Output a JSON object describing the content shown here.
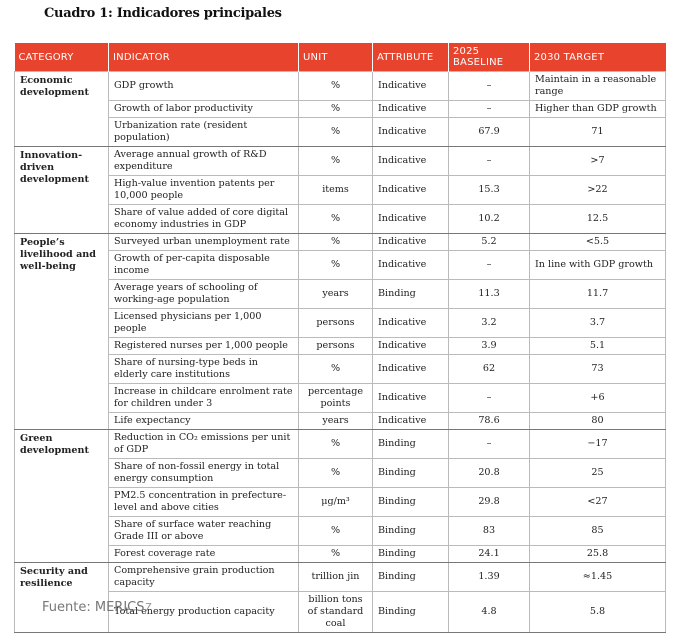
{
  "header": {
    "title": "Cuadro 1: Indicadores principales"
  },
  "table": {
    "columns": [
      "CATEGORY",
      "INDICATOR",
      "UNIT",
      "ATTRIBUTE",
      "2025 BASELINE",
      "2030 TARGET"
    ],
    "groups": [
      {
        "category": "Economic development",
        "rows": [
          {
            "indicator": "GDP growth",
            "unit": "%",
            "attribute": "Indicative",
            "baseline": "–",
            "target": "Maintain in a reasonable range"
          },
          {
            "indicator": "Growth of labor productivity",
            "unit": "%",
            "attribute": "Indicative",
            "baseline": "–",
            "target": "Higher than GDP growth"
          },
          {
            "indicator": "Urbanization rate (resident population)",
            "unit": "%",
            "attribute": "Indicative",
            "baseline": "67.9",
            "target": "71"
          }
        ]
      },
      {
        "category": "Innovation-driven development",
        "rows": [
          {
            "indicator": "Average annual growth of R&D expenditure",
            "unit": "%",
            "attribute": "Indicative",
            "baseline": "–",
            "target": ">7"
          },
          {
            "indicator": "High-value invention patents per 10,000 people",
            "unit": "items",
            "attribute": "Indicative",
            "baseline": "15.3",
            "target": ">22"
          },
          {
            "indicator": "Share of value added of core digital economy industries in GDP",
            "unit": "%",
            "attribute": "Indicative",
            "baseline": "10.2",
            "target": "12.5"
          }
        ]
      },
      {
        "category": "People’s livelihood and well-being",
        "rows": [
          {
            "indicator": "Surveyed urban unemployment rate",
            "unit": "%",
            "attribute": "Indicative",
            "baseline": "5.2",
            "target": "<5.5"
          },
          {
            "indicator": "Growth of per-capita disposable income",
            "unit": "%",
            "attribute": "Indicative",
            "baseline": "–",
            "target": "In line with GDP growth"
          },
          {
            "indicator": "Average years of schooling of working-age population",
            "unit": "years",
            "attribute": "Binding",
            "baseline": "11.3",
            "target": "11.7"
          },
          {
            "indicator": "Licensed physicians per 1,000 people",
            "unit": "persons",
            "attribute": "Indicative",
            "baseline": "3.2",
            "target": "3.7"
          },
          {
            "indicator": "Registered nurses per 1,000 people",
            "unit": "persons",
            "attribute": "Indicative",
            "baseline": "3.9",
            "target": "5.1"
          },
          {
            "indicator": "Share of nursing-type beds in elderly care institutions",
            "unit": "%",
            "attribute": "Indicative",
            "baseline": "62",
            "target": "73"
          },
          {
            "indicator": "Increase in childcare enrolment rate for children under 3",
            "unit": "percentage points",
            "attribute": "Indicative",
            "baseline": "–",
            "target": "+6"
          },
          {
            "indicator": "Life expectancy",
            "unit": "years",
            "attribute": "Indicative",
            "baseline": "78.6",
            "target": "80"
          }
        ]
      },
      {
        "category": "Green development",
        "rows": [
          {
            "indicator": "Reduction in CO₂ emissions per unit of GDP",
            "unit": "%",
            "attribute": "Binding",
            "baseline": "–",
            "target": "−17"
          },
          {
            "indicator": "Share of non-fossil energy in total energy consumption",
            "unit": "%",
            "attribute": "Binding",
            "baseline": "20.8",
            "target": "25"
          },
          {
            "indicator": "PM2.5 concentration in prefecture-level and above cities",
            "unit": "μg/m³",
            "attribute": "Binding",
            "baseline": "29.8",
            "target": "<27"
          },
          {
            "indicator": "Share of surface water reaching Grade III or above",
            "unit": "%",
            "attribute": "Binding",
            "baseline": "83",
            "target": "85"
          },
          {
            "indicator": "Forest coverage rate",
            "unit": "%",
            "attribute": "Binding",
            "baseline": "24.1",
            "target": "25.8"
          }
        ]
      },
      {
        "category": "Security and resilience",
        "rows": [
          {
            "indicator": "Comprehensive grain production capacity",
            "unit": "trillion jin",
            "attribute": "Binding",
            "baseline": "1.39",
            "target": "≈1.45"
          },
          {
            "indicator": "Total energy production capacity",
            "unit": "billion tons of standard coal",
            "attribute": "Binding",
            "baseline": "4.8",
            "target": "5.8"
          }
        ]
      }
    ]
  },
  "footer": {
    "source": "Fuente: MERICS",
    "note": "7"
  }
}
